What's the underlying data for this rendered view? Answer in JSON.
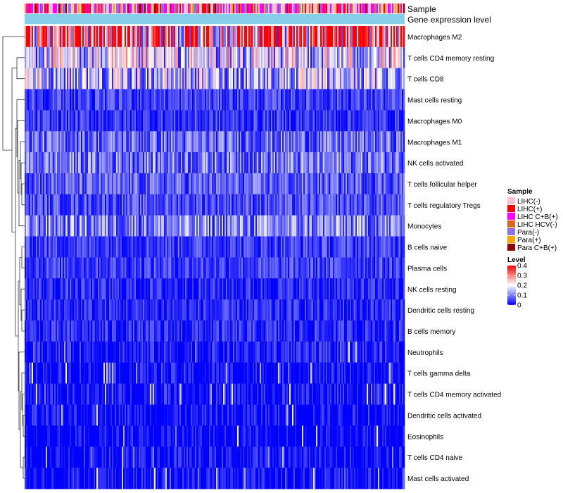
{
  "chart_data": {
    "type": "heatmap",
    "title": "",
    "clustering": "rows clustered (dendrogram on left), columns are samples",
    "column_tracks": [
      {
        "label": "Sample"
      },
      {
        "label": "Gene expression level"
      }
    ],
    "rows": [
      {
        "name": "Macrophages M2",
        "mean_level": 0.34
      },
      {
        "name": "T cells CD4 memory resting",
        "mean_level": 0.16
      },
      {
        "name": "T cells CD8",
        "mean_level": 0.14
      },
      {
        "name": "Mast cells resting",
        "mean_level": 0.05
      },
      {
        "name": "Macrophages M0",
        "mean_level": 0.04
      },
      {
        "name": "Macrophages M1",
        "mean_level": 0.08
      },
      {
        "name": "NK cells activated",
        "mean_level": 0.09
      },
      {
        "name": "T cells follicular helper",
        "mean_level": 0.07
      },
      {
        "name": "T cells regulatory  Tregs",
        "mean_level": 0.06
      },
      {
        "name": "Monocytes",
        "mean_level": 0.1
      },
      {
        "name": "B cells naive",
        "mean_level": 0.05
      },
      {
        "name": "Plasma cells",
        "mean_level": 0.05
      },
      {
        "name": "NK cells resting",
        "mean_level": 0.03
      },
      {
        "name": "Dendritic cells resting",
        "mean_level": 0.03
      },
      {
        "name": "B cells memory",
        "mean_level": 0.03
      },
      {
        "name": "Neutrophils",
        "mean_level": 0.02
      },
      {
        "name": "T cells gamma delta",
        "mean_level": 0.01
      },
      {
        "name": "T cells CD4 memory activated",
        "mean_level": 0.01
      },
      {
        "name": "Dendritic cells activated",
        "mean_level": 0.01
      },
      {
        "name": "Eosinophils",
        "mean_level": 0.0
      },
      {
        "name": "T cells CD4 naive",
        "mean_level": 0.01
      },
      {
        "name": "Mast cells activated",
        "mean_level": 0.01
      }
    ],
    "n_samples": 270,
    "legend_sample": {
      "title": "Sample",
      "entries": [
        {
          "label": "LIHC(-)",
          "color": "#ffc0cb"
        },
        {
          "label": "LIHC(+)",
          "color": "#ff0000"
        },
        {
          "label": "LIHC C+B(+)",
          "color": "#ff00ff"
        },
        {
          "label": "LIHC HCV(-)",
          "color": "#d2691e"
        },
        {
          "label": "Para(-)",
          "color": "#9370db"
        },
        {
          "label": "Para(+)",
          "color": "#ffa500"
        },
        {
          "label": "Para C+B(+)",
          "color": "#8b0000"
        }
      ]
    },
    "legend_level": {
      "title": "Level",
      "min": 0,
      "max": 0.4,
      "ticks": [
        {
          "value": 0.4,
          "label": "0.4"
        },
        {
          "value": 0.3,
          "label": "0.3"
        },
        {
          "value": 0.2,
          "label": "0.2"
        },
        {
          "value": 0.1,
          "label": "0.1"
        },
        {
          "value": 0,
          "label": "0"
        }
      ],
      "color_low": "#0000ff",
      "color_mid": "#ffffff",
      "color_high": "#ff0000"
    },
    "gene_expression_track_color": "#87ceeb"
  }
}
